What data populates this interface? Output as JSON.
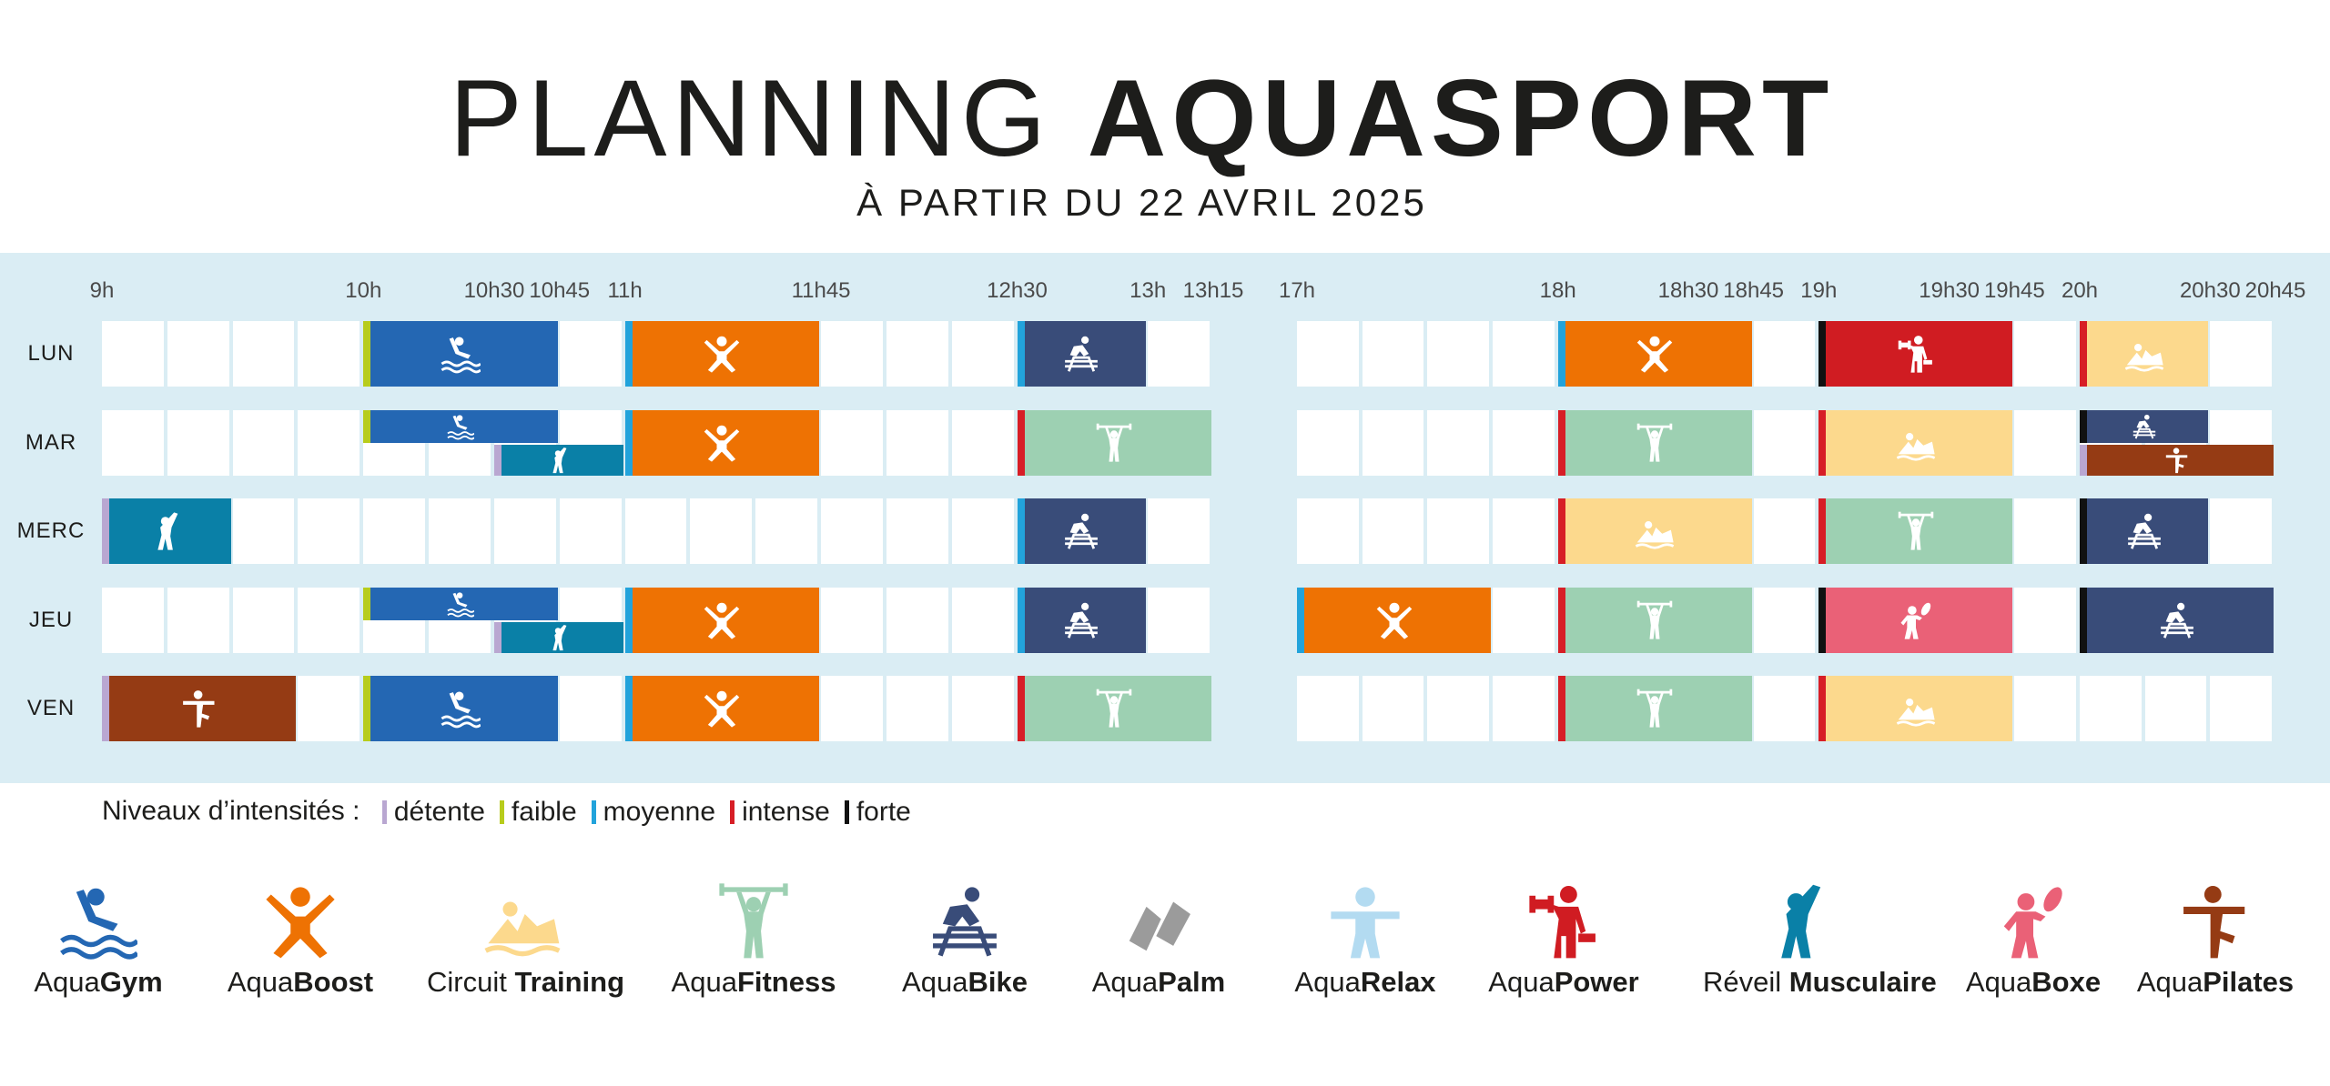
{
  "header": {
    "title_light": "PLANNING",
    "title_bold": "AQUASPORT",
    "subtitle": "À PARTIR DU 22 AVRIL 2025"
  },
  "timeline": {
    "ticks_morning": [
      "9h",
      "10h",
      "10h30",
      "10h45",
      "11h",
      "11h45",
      "12h30",
      "13h",
      "13h15"
    ],
    "ticks_evening": [
      "17h",
      "18h",
      "18h30",
      "18h45",
      "19h",
      "19h30",
      "19h45",
      "20h",
      "20h30",
      "20h45"
    ]
  },
  "days": [
    "LUN",
    "MAR",
    "MERC",
    "JEU",
    "VEN"
  ],
  "levels_label": "Niveaux d’intensités :",
  "levels": [
    {
      "id": "detente",
      "label": "détente",
      "color": "#b9a7d1"
    },
    {
      "id": "faible",
      "label": "faible",
      "color": "#b7cc1c"
    },
    {
      "id": "moyenne",
      "label": "moyenne",
      "color": "#22a3db"
    },
    {
      "id": "intense",
      "label": "intense",
      "color": "#d71e26"
    },
    {
      "id": "forte",
      "label": "forte",
      "color": "#111111"
    }
  ],
  "activities": [
    {
      "id": "gym",
      "prefix": "Aqua",
      "bold": "Gym",
      "color": "#2467b3",
      "icon": "swimmer-icon"
    },
    {
      "id": "boost",
      "prefix": "Aqua",
      "bold": "Boost",
      "color": "#ee7203",
      "icon": "jumping-person-icon"
    },
    {
      "id": "circuit",
      "prefix": "Circuit ",
      "bold": "Training",
      "color": "#fcd98d",
      "icon": "circuit-icon"
    },
    {
      "id": "fitness",
      "prefix": "Aqua",
      "bold": "Fitness",
      "color": "#9dd0b2",
      "icon": "weightlifter-icon"
    },
    {
      "id": "bike",
      "prefix": "Aqua",
      "bold": "Bike",
      "color": "#394c79",
      "icon": "cyclist-icon"
    },
    {
      "id": "palm",
      "prefix": "Aqua",
      "bold": "Palm",
      "color": "#9b9b9b",
      "icon": "flippers-icon"
    },
    {
      "id": "relax",
      "prefix": "Aqua",
      "bold": "Relax",
      "color": "#b3dbf1",
      "icon": "relax-person-icon"
    },
    {
      "id": "power",
      "prefix": "Aqua",
      "bold": "Power",
      "color": "#d01c22",
      "icon": "dumbbell-person-icon"
    },
    {
      "id": "reveil",
      "prefix": "Réveil ",
      "bold": "Musculaire",
      "color": "#0a80a7",
      "icon": "stretching-person-icon"
    },
    {
      "id": "boxe",
      "prefix": "Aqua",
      "bold": "Boxe",
      "color": "#ea6177",
      "icon": "boxer-icon"
    },
    {
      "id": "pilates",
      "prefix": "Aqua",
      "bold": "Pilates",
      "color": "#953b14",
      "icon": "pilates-pose-icon"
    }
  ],
  "schedule": [
    {
      "day": "LUN",
      "start": "10h",
      "end": "10h45",
      "activity": "gym",
      "level": "faible"
    },
    {
      "day": "LUN",
      "start": "11h",
      "end": "11h45",
      "activity": "boost",
      "level": "moyenne"
    },
    {
      "day": "LUN",
      "start": "12h30",
      "end": "13h",
      "activity": "bike",
      "level": "moyenne"
    },
    {
      "day": "LUN",
      "start": "18h",
      "end": "18h45",
      "activity": "boost",
      "level": "moyenne"
    },
    {
      "day": "LUN",
      "start": "19h",
      "end": "19h45",
      "activity": "power",
      "level": "forte"
    },
    {
      "day": "LUN",
      "start": "20h",
      "end": "20h30",
      "activity": "circuit",
      "level": "intense"
    },
    {
      "day": "MAR",
      "start": "10h",
      "end": "10h45",
      "activity": "gym",
      "level": "faible",
      "lane": "top"
    },
    {
      "day": "MAR",
      "start": "10h30",
      "end": "11h",
      "activity": "reveil",
      "level": "detente",
      "lane": "bottom"
    },
    {
      "day": "MAR",
      "start": "11h",
      "end": "11h45",
      "activity": "boost",
      "level": "moyenne"
    },
    {
      "day": "MAR",
      "start": "12h30",
      "end": "13h15",
      "activity": "fitness",
      "level": "intense"
    },
    {
      "day": "MAR",
      "start": "18h",
      "end": "18h45",
      "activity": "fitness",
      "level": "intense"
    },
    {
      "day": "MAR",
      "start": "19h",
      "end": "19h45",
      "activity": "circuit",
      "level": "intense"
    },
    {
      "day": "MAR",
      "start": "20h",
      "end": "20h30",
      "activity": "bike",
      "level": "forte",
      "lane": "top"
    },
    {
      "day": "MAR",
      "start": "20h",
      "end": "20h45",
      "activity": "pilates",
      "level": "detente",
      "lane": "bottom"
    },
    {
      "day": "MERC",
      "start": "9h",
      "end": "9h30",
      "activity": "reveil",
      "level": "detente"
    },
    {
      "day": "MERC",
      "start": "12h30",
      "end": "13h",
      "activity": "bike",
      "level": "moyenne"
    },
    {
      "day": "MERC",
      "start": "18h",
      "end": "18h45",
      "activity": "circuit",
      "level": "intense"
    },
    {
      "day": "MERC",
      "start": "19h",
      "end": "19h45",
      "activity": "fitness",
      "level": "intense"
    },
    {
      "day": "MERC",
      "start": "20h",
      "end": "20h30",
      "activity": "bike",
      "level": "forte"
    },
    {
      "day": "JEU",
      "start": "10h",
      "end": "10h45",
      "activity": "gym",
      "level": "faible",
      "lane": "top"
    },
    {
      "day": "JEU",
      "start": "10h30",
      "end": "11h",
      "activity": "reveil",
      "level": "detente",
      "lane": "bottom"
    },
    {
      "day": "JEU",
      "start": "11h",
      "end": "11h45",
      "activity": "boost",
      "level": "moyenne"
    },
    {
      "day": "JEU",
      "start": "12h30",
      "end": "13h",
      "activity": "bike",
      "level": "moyenne"
    },
    {
      "day": "JEU",
      "start": "17h",
      "end": "17h45",
      "activity": "boost",
      "level": "moyenne"
    },
    {
      "day": "JEU",
      "start": "18h",
      "end": "18h45",
      "activity": "fitness",
      "level": "intense"
    },
    {
      "day": "JEU",
      "start": "19h",
      "end": "19h45",
      "activity": "boxe",
      "level": "forte"
    },
    {
      "day": "JEU",
      "start": "20h",
      "end": "20h45",
      "activity": "bike",
      "level": "forte"
    },
    {
      "day": "VEN",
      "start": "9h",
      "end": "9h45",
      "activity": "pilates",
      "level": "detente"
    },
    {
      "day": "VEN",
      "start": "10h",
      "end": "10h45",
      "activity": "gym",
      "level": "faible"
    },
    {
      "day": "VEN",
      "start": "11h",
      "end": "11h45",
      "activity": "boost",
      "level": "moyenne"
    },
    {
      "day": "VEN",
      "start": "12h30",
      "end": "13h15",
      "activity": "fitness",
      "level": "intense"
    },
    {
      "day": "VEN",
      "start": "18h",
      "end": "18h45",
      "activity": "fitness",
      "level": "intense"
    },
    {
      "day": "VEN",
      "start": "19h",
      "end": "19h45",
      "activity": "circuit",
      "level": "intense"
    }
  ]
}
